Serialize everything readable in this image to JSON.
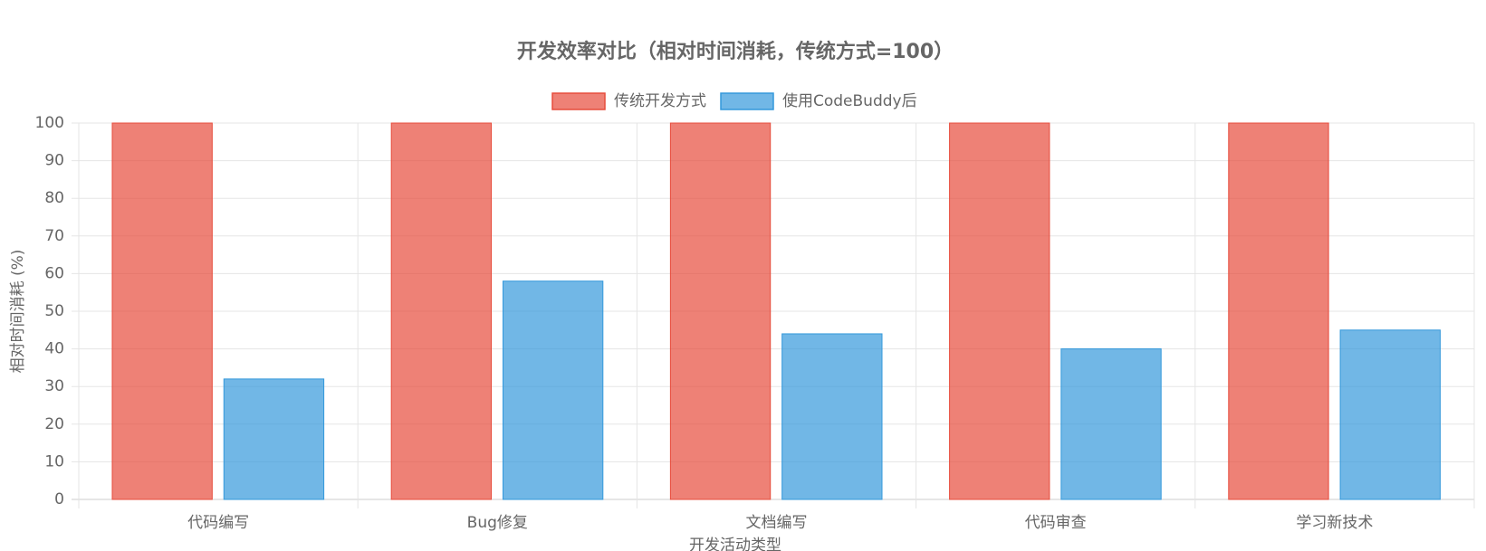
{
  "chart_data": {
    "type": "bar",
    "title": "开发效率对比（相对时间消耗，传统方式=100）",
    "x_label": "开发活动类型",
    "y_label": "相对时间消耗 (%)",
    "categories": [
      "代码编写",
      "Bug修复",
      "文档编写",
      "代码审查",
      "学习新技术"
    ],
    "series": [
      {
        "name": "传统开发方式",
        "color": "#e74c3c",
        "values": [
          100,
          100,
          100,
          100,
          100
        ]
      },
      {
        "name": "使用CodeBuddy后",
        "color": "#3498db",
        "values": [
          32,
          58,
          44,
          40,
          45
        ]
      }
    ],
    "ylim": [
      0,
      100
    ],
    "yticks": [
      0,
      10,
      20,
      30,
      40,
      50,
      60,
      70,
      80,
      90,
      100
    ],
    "grid": true,
    "legend": "top"
  }
}
